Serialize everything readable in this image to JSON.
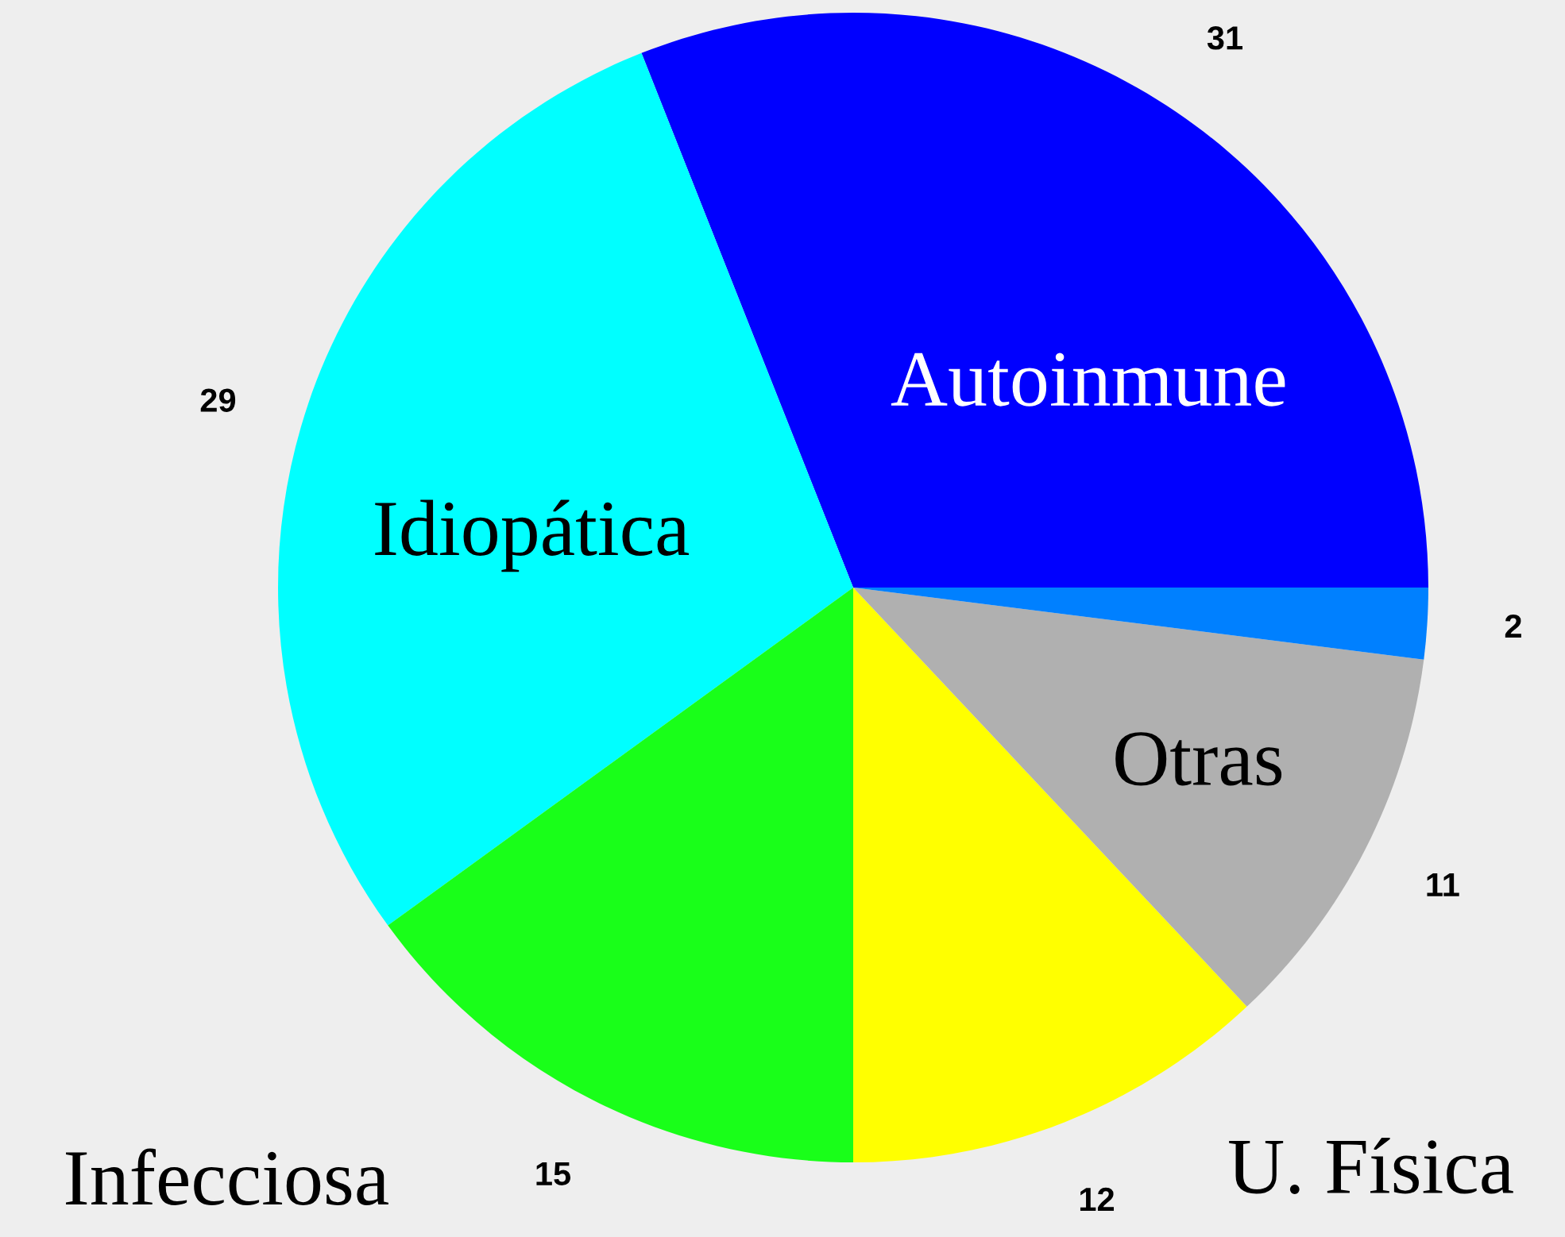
{
  "chart_data": {
    "type": "pie",
    "categories": [
      "Autoinmune",
      "Idiopática",
      "Infecciosa",
      "U. Física",
      "Otras",
      null
    ],
    "values": [
      31,
      29,
      15,
      12,
      11,
      2
    ],
    "colors": [
      "#0000ff",
      "#00ffff",
      "#19ff19",
      "#ffff00",
      "#b0b0b0",
      "#0080ff"
    ],
    "data_labels": true
  }
}
